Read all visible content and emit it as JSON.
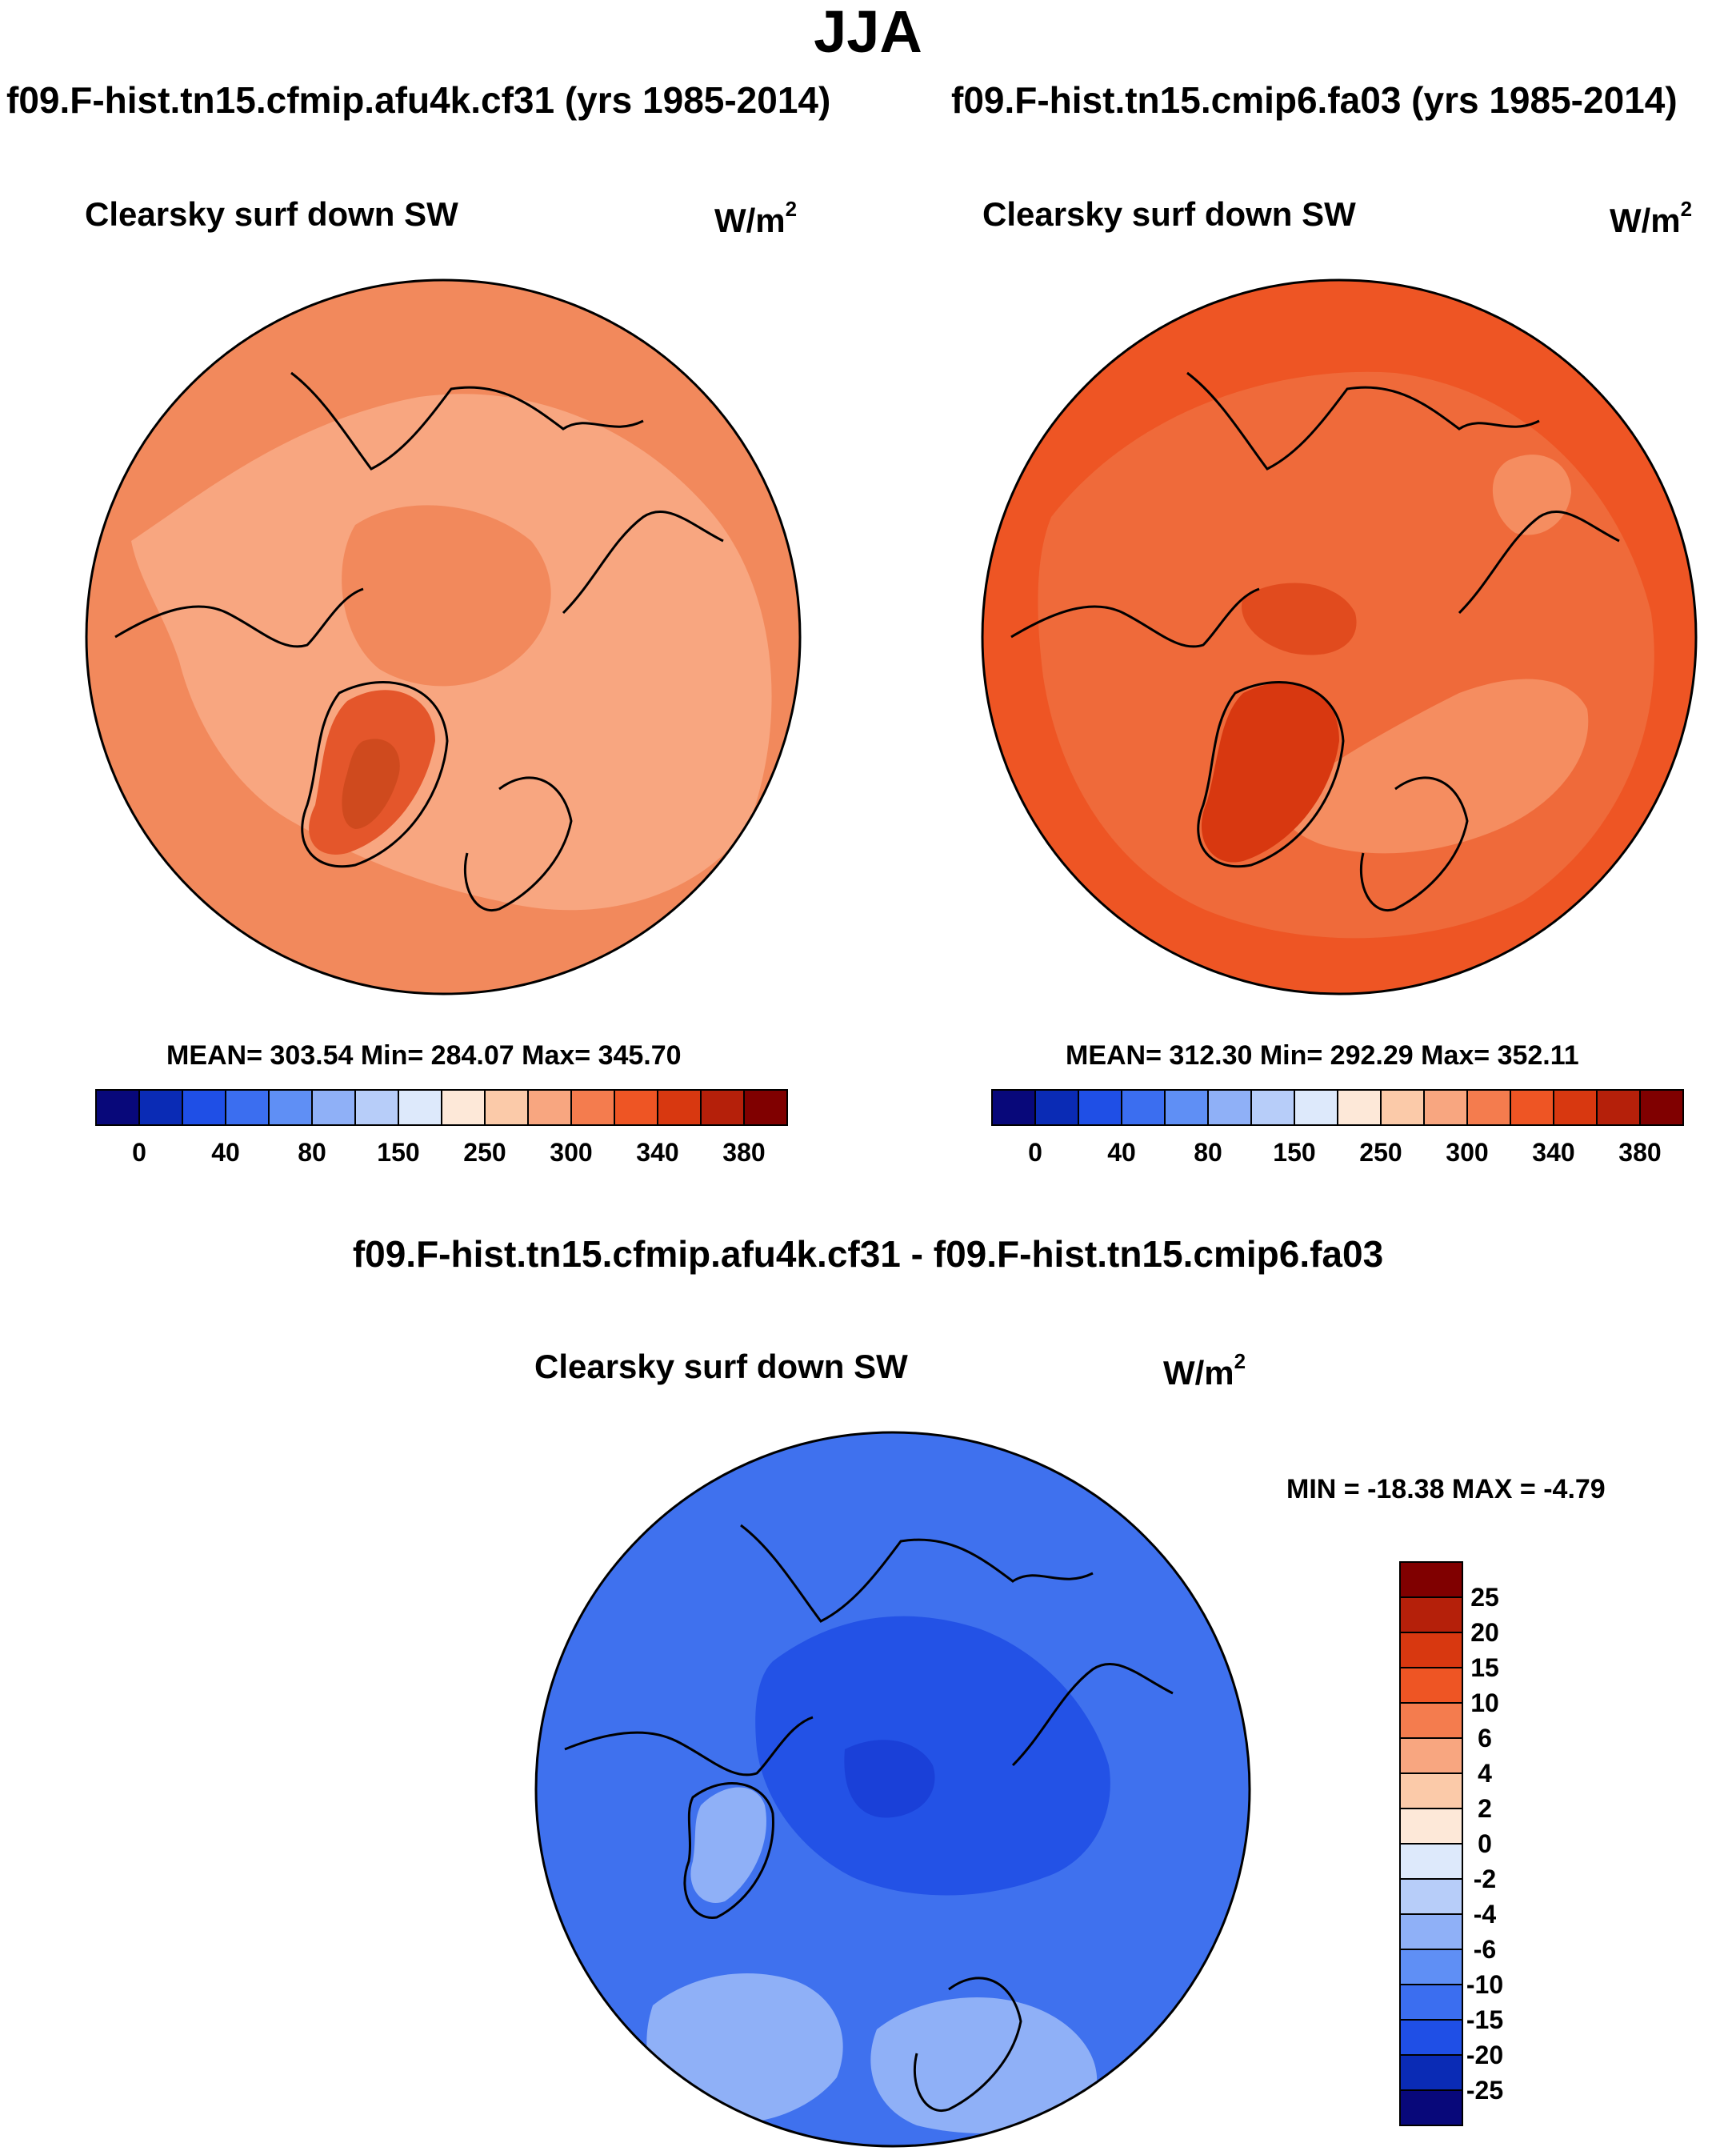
{
  "title": "JJA",
  "panels": [
    {
      "case_title": "f09.F-hist.tn15.cfmip.afu4k.cf31 (yrs 1985-2014)",
      "variable": "Clearsky surf down SW",
      "units": "W/m",
      "units_exp": "2",
      "stats": "MEAN= 303.54  Min= 284.07  Max= 345.70",
      "colorbar_ticks": [
        "0",
        "40",
        "80",
        "150",
        "250",
        "300",
        "340",
        "380"
      ]
    },
    {
      "case_title": "f09.F-hist.tn15.cmip6.fa03 (yrs 1985-2014)",
      "variable": "Clearsky surf down SW",
      "units": "W/m",
      "units_exp": "2",
      "stats": "MEAN= 312.30  Min= 292.29  Max= 352.11",
      "colorbar_ticks": [
        "0",
        "40",
        "80",
        "150",
        "250",
        "300",
        "340",
        "380"
      ]
    }
  ],
  "diff": {
    "title": "f09.F-hist.tn15.cfmip.afu4k.cf31 - f09.F-hist.tn15.cmip6.fa03",
    "variable": "Clearsky surf down SW",
    "units": "W/m",
    "units_exp": "2",
    "minmax": "MIN = -18.38 MAX =  -4.79",
    "colorbar_labels": [
      "25",
      "20",
      "15",
      "10",
      "6",
      "4",
      "2",
      "0",
      "-2",
      "-4",
      "-6",
      "-10",
      "-15",
      "-20",
      "-25"
    ]
  },
  "colors": {
    "abs_scale": [
      "#08087a",
      "#0a2bb5",
      "#1f4fe6",
      "#3b6ef0",
      "#5f8ff5",
      "#8fb0f7",
      "#b7cdf9",
      "#dde9fb",
      "#fde8d8",
      "#fbcaa9",
      "#f8a680",
      "#f47c4e",
      "#ee5524",
      "#d83810",
      "#b5200a",
      "#800000"
    ],
    "diff_scale": [
      "#800000",
      "#b5200a",
      "#d83810",
      "#ee5524",
      "#f47c4e",
      "#f8a680",
      "#fbcaa9",
      "#fde8d8",
      "#dde9fb",
      "#b7cdf9",
      "#8fb0f7",
      "#5f8ff5",
      "#3b6ef0",
      "#1f4fe6",
      "#0a2bb5",
      "#08087a"
    ],
    "map1_base": "#f2895c",
    "map1_mid": "#f8a680",
    "map1_hi": "#e4562b",
    "map1_top": "#cf4a1e",
    "map2_base": "#ef6a3a",
    "map2_edge": "#ee5524",
    "map2_light": "#f58d60",
    "map2_hi": "#d83810",
    "diff_base": "#3f71ee",
    "diff_dark": "#2352e6",
    "diff_darker": "#1a40d8",
    "diff_light": "#8fb0f7",
    "coast": "#000000"
  }
}
